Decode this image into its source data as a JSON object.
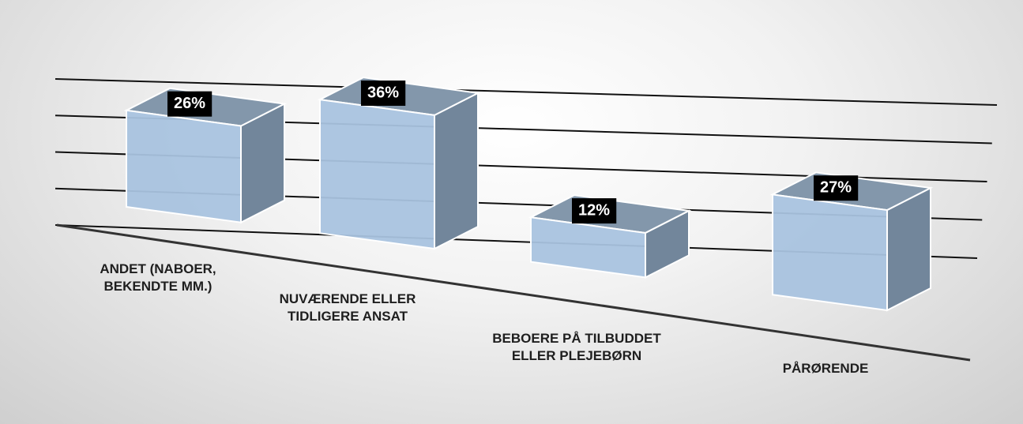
{
  "chart_data": {
    "type": "bar3d",
    "categories": [
      "ANDET (NABOER, BEKENDTE MM.)",
      "NUVÆRENDE ELLER TIDLIGERE ANSAT",
      "BEBOERE PÅ TILBUDDET ELLER PLEJEBØRN",
      "PÅRØRENDE"
    ],
    "values": [
      26,
      36,
      12,
      27
    ],
    "value_labels": [
      "26%",
      "36%",
      "12%",
      "27%"
    ],
    "color": "#a9c3df",
    "ylim": [
      0,
      40
    ],
    "yticks": [
      0,
      10,
      20,
      30,
      40
    ],
    "grid": true
  }
}
